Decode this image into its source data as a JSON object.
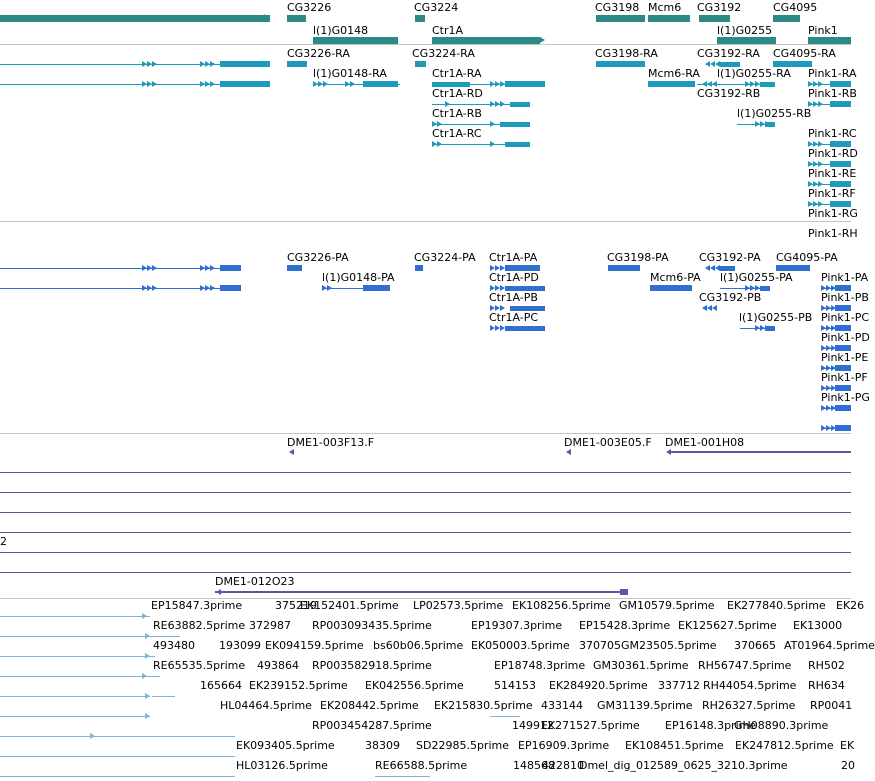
{
  "colors": {
    "gene": "#2b8a86",
    "mrna": "#1e9aba",
    "cds": "#2f6fd1",
    "clone": "#6a4fa3",
    "est": "#7ab3dc",
    "separator": "#c4c4c4",
    "text": "#000000"
  },
  "tracks": {
    "genes": {
      "labels": [
        "CG3226",
        "l(1)G0148",
        "CG3224",
        "Ctr1A",
        "CG3198",
        "Mcm6",
        "CG3192",
        "l(1)G0255",
        "CG4095",
        "Pink1"
      ]
    },
    "mrna": {
      "labels": [
        "CG3226-RA",
        "l(1)G0148-RA",
        "CG3224-RA",
        "Ctr1A-RA",
        "Ctr1A-RD",
        "Ctr1A-RB",
        "Ctr1A-RC",
        "CG3198-RA",
        "Mcm6-RA",
        "CG3192-RA",
        "CG3192-RB",
        "l(1)G0255-RA",
        "l(1)G0255-RB",
        "CG4095-RA",
        "Pink1-RA",
        "Pink1-RB",
        "Pink1-RC",
        "Pink1-RD",
        "Pink1-RE",
        "Pink1-RF",
        "Pink1-RG",
        "Pink1-RH"
      ]
    },
    "cds": {
      "labels": [
        "CG3226-PA",
        "l(1)G0148-PA",
        "CG3224-PA",
        "Ctr1A-PA",
        "Ctr1A-PD",
        "Ctr1A-PB",
        "Ctr1A-PC",
        "CG3198-PA",
        "Mcm6-PA",
        "CG3192-PA",
        "CG3192-PB",
        "l(1)G0255-PA",
        "l(1)G0255-PB",
        "CG4095-PA",
        "Pink1-PA",
        "Pink1-PB",
        "Pink1-PC",
        "Pink1-PD",
        "Pink1-PE",
        "Pink1-PF",
        "Pink1-PG"
      ]
    },
    "clones": {
      "labels": [
        "DME1-003F13.F",
        "DME1-003E05.F",
        "DME1-001H08",
        "DME1-012O23",
        "2"
      ]
    },
    "est": {
      "labels": [
        "EP15847.3prime",
        "375219",
        "EK152401.5prime",
        "LP02573.5prime",
        "EK108256.5prime",
        "GM10579.5prime",
        "EK277840.5prime",
        "EK26",
        "RE63882.5prime",
        "372987",
        "RP003093435.5prime",
        "EP19307.3prime",
        "EP15428.3prime",
        "EK125627.5prime",
        "EK13000",
        "493480",
        "193099",
        "EK094159.5prime",
        "bs60b06.5prime",
        "EK050003.5prime",
        "370705",
        "GM23505.5prime",
        "370665",
        "AT01964.5prime",
        "RE65535.5prime",
        "493864",
        "RP003582918.5prime",
        "EP18748.3prime",
        "GM30361.5prime",
        "RH56747.5prime",
        "RH502",
        "165664",
        "EK239152.5prime",
        "EK042556.5prime",
        "514153",
        "EK284920.5prime",
        "337712",
        "RH44054.5prime",
        "RH634",
        "HL04464.5prime",
        "EK208442.5prime",
        "EK215830.5prime",
        "433144",
        "GM31139.5prime",
        "RH26327.5prime",
        "RP0041",
        "RP003454287.5prime",
        "149912",
        "EK271527.5prime",
        "EP16148.3prime",
        "GH08890.3prime",
        "EK093405.5prime",
        "38309",
        "SD22985.5prime",
        "EP16909.3prime",
        "EK108451.5prime",
        "EK247812.5prime",
        "EK",
        "HL03126.5prime",
        "RE66588.5prime",
        "148568",
        "422810",
        "Dmel_dig_012589_0625_3210.3prime",
        "20"
      ]
    }
  }
}
